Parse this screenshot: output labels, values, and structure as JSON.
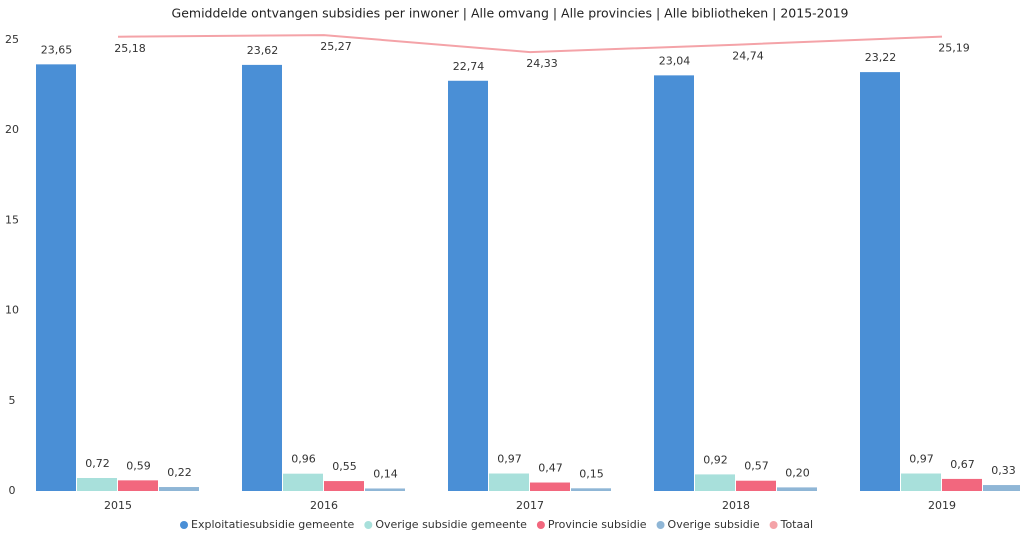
{
  "chart_data": {
    "type": "bar",
    "title": "Gemiddelde ontvangen subsidies per inwoner | Alle omvang | Alle provincies | Alle bibliotheken | 2015-2019",
    "categories": [
      "2015",
      "2016",
      "2017",
      "2018",
      "2019"
    ],
    "ylim": [
      0,
      25
    ],
    "yticks": [
      0,
      5,
      10,
      15,
      20,
      25
    ],
    "grid": false,
    "series": [
      {
        "name": "Exploitatiesubsidie gemeente",
        "color": "#4a8fd6",
        "values": [
          23.65,
          23.62,
          22.74,
          23.04,
          23.22
        ],
        "value_labels": [
          "23,65",
          "23,62",
          "22,74",
          "23,04",
          "23,22"
        ]
      },
      {
        "name": "Overige subsidie gemeente",
        "color": "#a8e0db",
        "values": [
          0.72,
          0.96,
          0.97,
          0.92,
          0.97
        ],
        "value_labels": [
          "0,72",
          "0,96",
          "0,97",
          "0,92",
          "0,97"
        ]
      },
      {
        "name": "Provincie subsidie",
        "color": "#f2677e",
        "values": [
          0.59,
          0.55,
          0.47,
          0.57,
          0.67
        ],
        "value_labels": [
          "0,59",
          "0,55",
          "0,47",
          "0,57",
          "0,67"
        ]
      },
      {
        "name": "Overige subsidie",
        "color": "#8fb6d6",
        "values": [
          0.22,
          0.14,
          0.15,
          0.2,
          0.33
        ],
        "value_labels": [
          "0,22",
          "0,14",
          "0,15",
          "0,20",
          "0,33"
        ]
      },
      {
        "name": "Totaal",
        "type": "line",
        "color": "#f4a3a8",
        "values": [
          25.18,
          25.27,
          24.33,
          24.74,
          25.19
        ],
        "value_labels": [
          "25,18",
          "25,27",
          "24,33",
          "24,74",
          "25,19"
        ]
      }
    ]
  }
}
